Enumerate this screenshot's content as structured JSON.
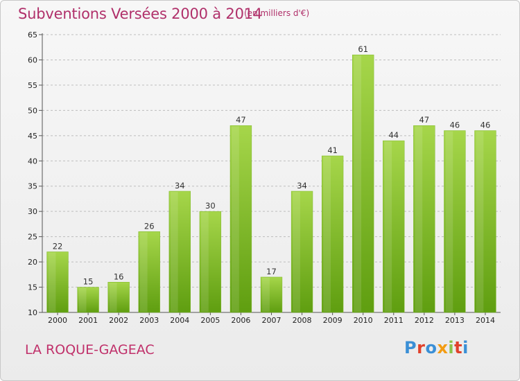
{
  "header": {
    "title": "Subventions Versées 2000 à 2014",
    "unit": "(en milliers d'€)"
  },
  "footer": {
    "commune": "LA ROQUE-GAGEAC",
    "logo_text": "Proxiti",
    "logo_colors": [
      "#3a8fd6",
      "#e0412b",
      "#3a8fd6",
      "#f39c12",
      "#8bc34a",
      "#e0412b",
      "#3a8fd6"
    ]
  },
  "colors": {
    "title": "#b0306a",
    "bar_top": "#a6d64a",
    "bar_bottom": "#5f9e10",
    "grid": "#bdbdbd"
  },
  "chart_data": {
    "type": "bar",
    "title": "Subventions Versées 2000 à 2014",
    "subtitle": "(en milliers d'€)",
    "xlabel": "",
    "ylabel": "",
    "categories": [
      "2000",
      "2001",
      "2002",
      "2003",
      "2004",
      "2005",
      "2006",
      "2007",
      "2008",
      "2009",
      "2010",
      "2011",
      "2012",
      "2013",
      "2014"
    ],
    "values": [
      22,
      15,
      16,
      26,
      34,
      30,
      47,
      17,
      34,
      41,
      61,
      44,
      47,
      46,
      46
    ],
    "ylim": [
      10,
      65
    ],
    "yticks": [
      10,
      15,
      20,
      25,
      30,
      35,
      40,
      45,
      50,
      55,
      60,
      65
    ],
    "grid": true,
    "legend": "none"
  }
}
